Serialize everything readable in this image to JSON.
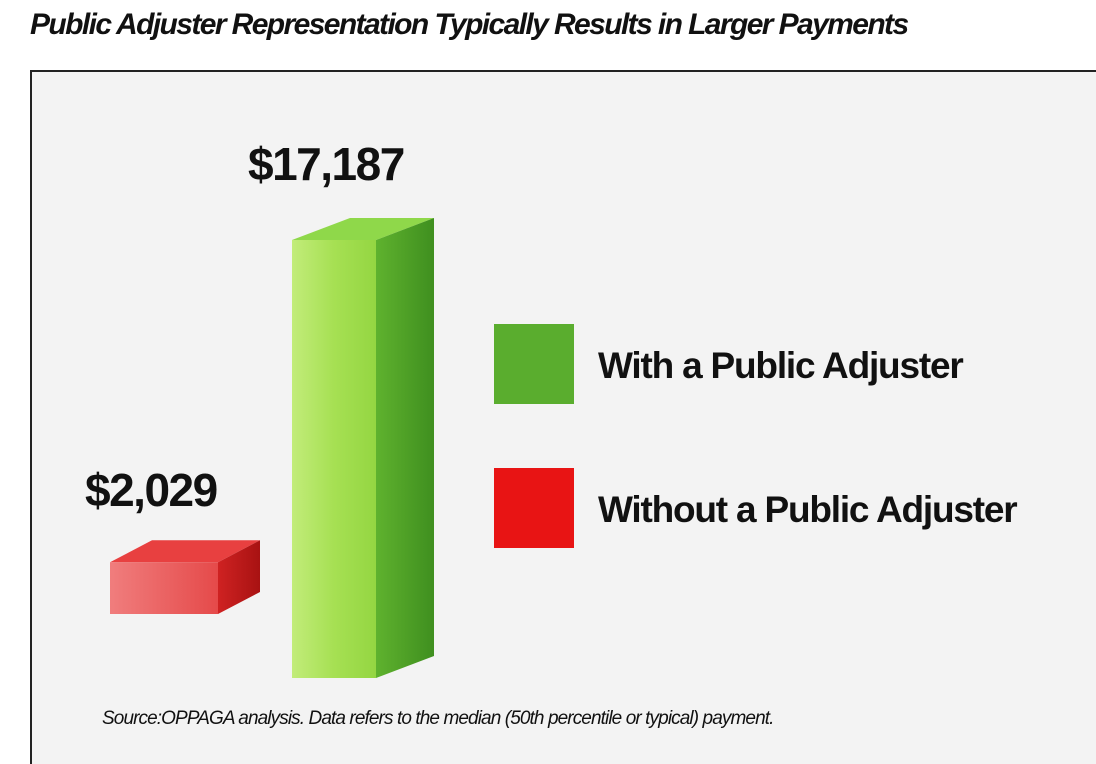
{
  "chart_data": {
    "type": "bar",
    "title": "Public Adjuster Representation Typically Results in Larger Payments",
    "categories": [
      "Without a Public Adjuster",
      "With a Public Adjuster"
    ],
    "values": [
      2029,
      17187
    ],
    "data_labels": [
      "$2,029",
      "$17,187"
    ],
    "xlabel": "",
    "ylabel": "",
    "ylim": [
      0,
      17187
    ],
    "grid": false,
    "legend": {
      "position": "right",
      "entries": [
        {
          "label": "With a Public Adjuster",
          "color": "#5aad2e"
        },
        {
          "label": "Without a Public Adjuster",
          "color": "#e81414"
        }
      ]
    },
    "colors": {
      "with_front": "#a6e053",
      "with_side": "#4e9f27",
      "with_top": "#8fd84a",
      "without_front": "#ee5a5a",
      "without_side": "#c41a1a",
      "without_top": "#e84040"
    },
    "source": "Source:OPPAGA analysis. Data refers to the median (50th percentile or typical) payment."
  }
}
